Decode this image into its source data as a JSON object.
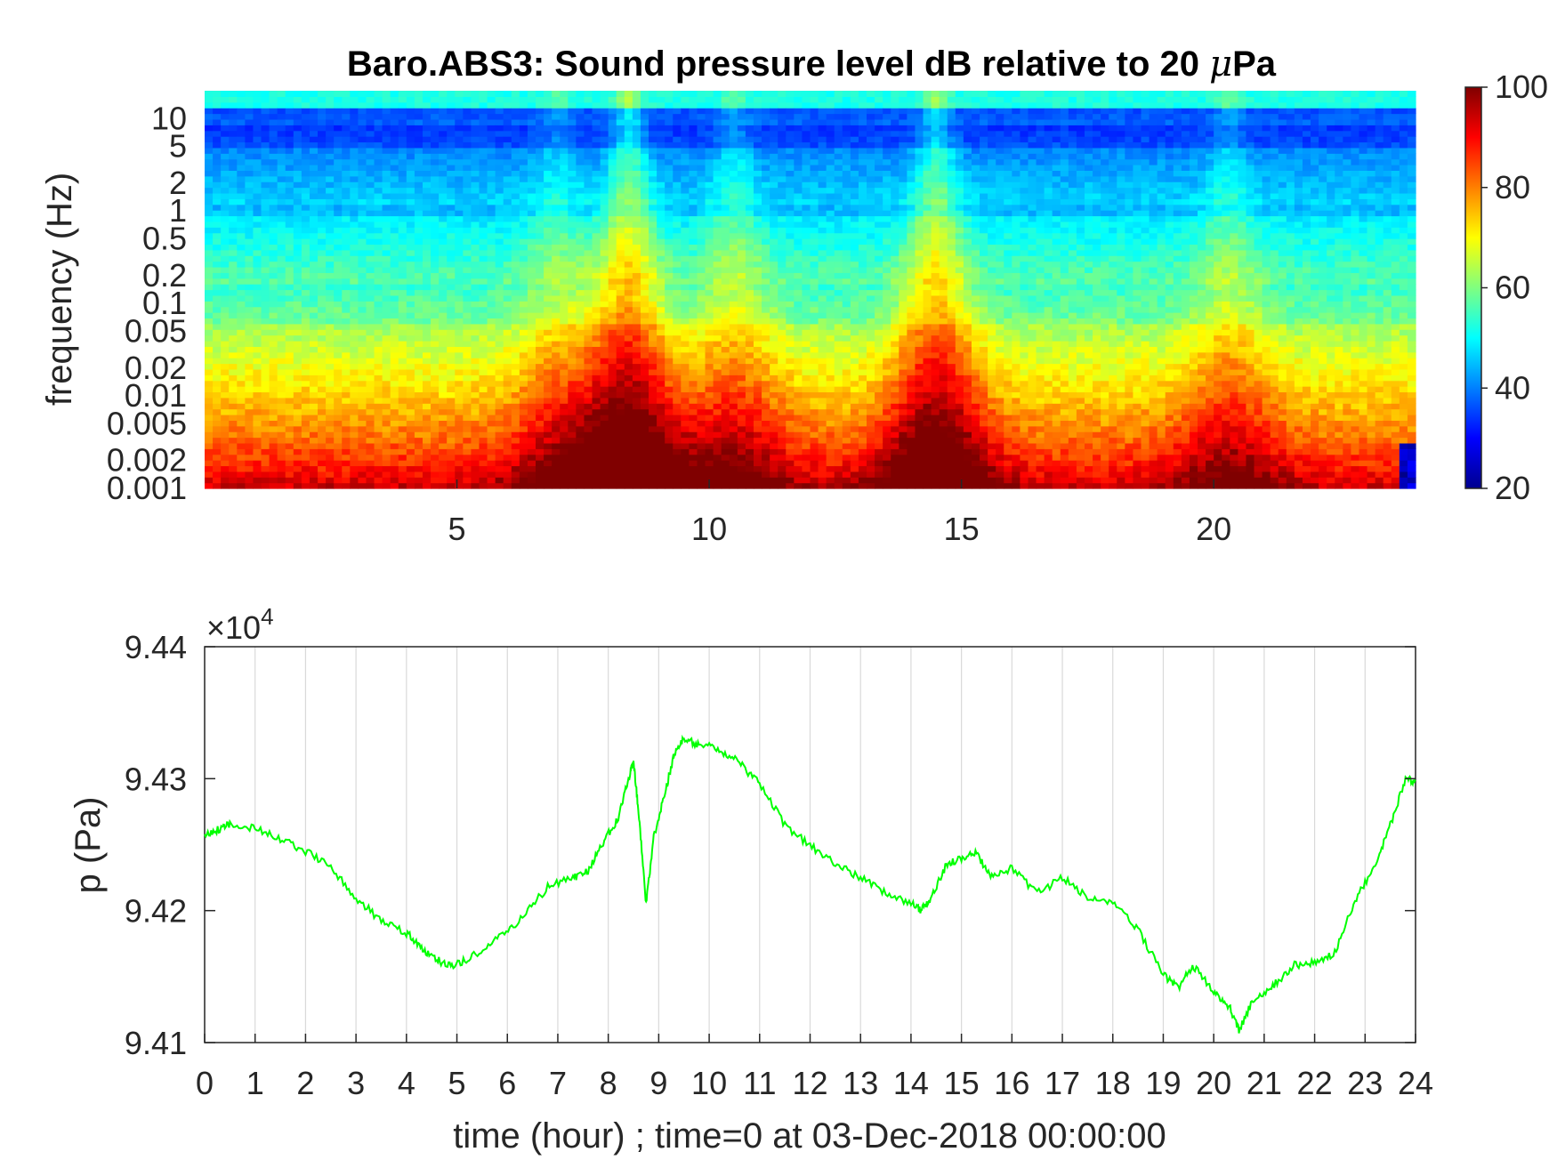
{
  "colors": {
    "line": "#00ff00",
    "axis": "#262626",
    "grid": "#d9d9d9"
  },
  "chart_data": [
    {
      "type": "heatmap",
      "title_main": "Baro.ABS3: Sound pressure level dB relative to 20 ",
      "title_mu": "μ",
      "title_end": "Pa",
      "ylabel": "frequency (Hz)",
      "xlim": [
        0,
        24
      ],
      "x_ticks": [
        "5",
        "10",
        "15",
        "20"
      ],
      "y_scale": "log",
      "ylim": [
        0.001,
        20
      ],
      "y_ticks": [
        "10",
        "5",
        "2",
        "1",
        "0.5",
        "0.2",
        "0.1",
        "0.05",
        "0.02",
        "0.01",
        "0.005",
        "0.002",
        "0.001"
      ],
      "colormap": "jet",
      "clim": [
        20,
        100
      ],
      "colorbar_ticks": [
        "100",
        "80",
        "60",
        "40",
        "20"
      ],
      "events": [
        {
          "time": 8.4,
          "strength": 1.0
        },
        {
          "time": 14.5,
          "strength": 0.9
        },
        {
          "time": 10.5,
          "strength": 0.5
        },
        {
          "time": 20.3,
          "strength": 0.45
        },
        {
          "time": 7.0,
          "strength": 0.4
        }
      ]
    },
    {
      "type": "line",
      "ylabel": "p (Pa)",
      "xlabel": "time (hour) ; time=0 at 03-Dec-2018 00:00:00",
      "y_exponent_base": "×10",
      "y_exponent_power": "4",
      "xlim": [
        0,
        24
      ],
      "ylim": [
        9.41,
        9.44
      ],
      "x_ticks": [
        "0",
        "1",
        "2",
        "3",
        "4",
        "5",
        "6",
        "7",
        "8",
        "9",
        "10",
        "11",
        "12",
        "13",
        "14",
        "15",
        "16",
        "17",
        "18",
        "19",
        "20",
        "21",
        "22",
        "23",
        "24"
      ],
      "y_ticks": [
        "9.44",
        "9.43",
        "9.42",
        "9.41"
      ],
      "grid": "vertical",
      "series": [
        {
          "color": "#00ff00",
          "x": [
            0,
            0.3,
            0.5,
            1.0,
            1.5,
            2.0,
            2.5,
            3.0,
            3.5,
            4.0,
            4.3,
            4.6,
            4.9,
            5.3,
            5.8,
            6.3,
            6.8,
            7.3,
            7.6,
            7.9,
            8.2,
            8.4,
            8.5,
            8.6,
            8.75,
            8.9,
            9.1,
            9.3,
            9.5,
            9.8,
            10.2,
            10.6,
            11.0,
            11.5,
            12.0,
            12.5,
            13.0,
            13.5,
            14.0,
            14.2,
            14.4,
            14.7,
            15.0,
            15.3,
            15.6,
            16.0,
            16.5,
            17.0,
            17.5,
            18.0,
            18.5,
            19.0,
            19.3,
            19.6,
            20.0,
            20.3,
            20.5,
            20.8,
            21.2,
            21.6,
            22.0,
            22.4,
            22.8,
            23.2,
            23.5,
            23.8,
            24.0
          ],
          "y": [
            94256,
            94262,
            94266,
            94262,
            94254,
            94245,
            94233,
            94210,
            94192,
            94183,
            94172,
            94163,
            94157,
            94165,
            94178,
            94195,
            94218,
            94225,
            94230,
            94252,
            94270,
            94300,
            94313,
            94275,
            94205,
            94255,
            94285,
            94318,
            94330,
            94326,
            94322,
            94312,
            94296,
            94265,
            94249,
            94236,
            94225,
            94213,
            94205,
            94200,
            94210,
            94235,
            94240,
            94243,
            94226,
            94232,
            94213,
            94225,
            94210,
            94207,
            94186,
            94151,
            94142,
            94158,
            94138,
            94128,
            94110,
            94133,
            94144,
            94159,
            94160,
            94168,
            94207,
            94235,
            94265,
            94300,
            94298
          ]
        }
      ]
    }
  ]
}
